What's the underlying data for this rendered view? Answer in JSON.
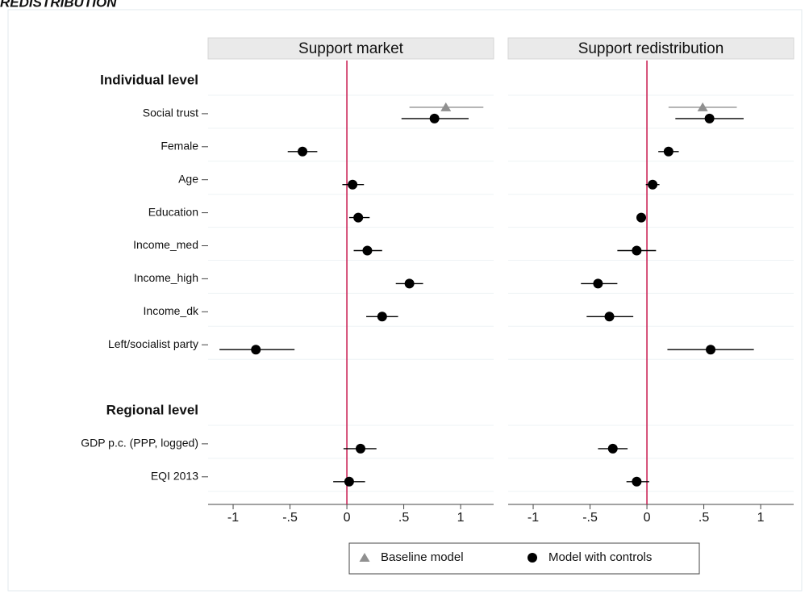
{
  "chart_data": {
    "type": "coefplot",
    "title": "REDISTRIBUTION",
    "xlim": [
      -1.22,
      1.29
    ],
    "xticks": [
      -1,
      {
        "value": -0.5,
        "label": "-.5"
      },
      0,
      {
        "value": 0.5,
        "label": ".5"
      },
      1
    ],
    "reference_line": {
      "value": 0,
      "color": "#c8174d"
    },
    "groups": [
      {
        "label": "Individual level",
        "categories": [
          "Social trust",
          "Female",
          "Age",
          "Education",
          "Income_med",
          "Income_high",
          "Income_dk",
          "Left/socialist party"
        ]
      },
      {
        "label": "Regional level",
        "categories": [
          "GDP p.c. (PPP, logged)",
          "EQI 2013"
        ]
      }
    ],
    "series": [
      {
        "name": "Baseline model",
        "color": "#909090",
        "marker": "triangle"
      },
      {
        "name": "Model with controls",
        "color": "#000000",
        "marker": "circle"
      }
    ],
    "panels": [
      {
        "title": "Support market",
        "series": [
          {
            "values": [
              0.87,
              null,
              null,
              null,
              null,
              null,
              null,
              null,
              null,
              null
            ],
            "lower": [
              0.55,
              null,
              null,
              null,
              null,
              null,
              null,
              null,
              null,
              null
            ],
            "upper": [
              1.2,
              null,
              null,
              null,
              null,
              null,
              null,
              null,
              null,
              null
            ]
          },
          {
            "values": [
              0.77,
              -0.39,
              0.05,
              0.1,
              0.18,
              0.55,
              0.31,
              -0.8,
              0.12,
              0.02
            ],
            "lower": [
              0.48,
              -0.52,
              -0.04,
              0.02,
              0.06,
              0.43,
              0.17,
              -1.12,
              -0.03,
              -0.12
            ],
            "upper": [
              1.07,
              -0.26,
              0.15,
              0.2,
              0.31,
              0.67,
              0.45,
              -0.46,
              0.26,
              0.16
            ]
          }
        ]
      },
      {
        "title": "Support redistribution",
        "series": [
          {
            "values": [
              0.49,
              null,
              null,
              null,
              null,
              null,
              null,
              null,
              null,
              null
            ],
            "lower": [
              0.19,
              null,
              null,
              null,
              null,
              null,
              null,
              null,
              null,
              null
            ],
            "upper": [
              0.79,
              null,
              null,
              null,
              null,
              null,
              null,
              null,
              null,
              null
            ]
          },
          {
            "values": [
              0.55,
              0.19,
              0.05,
              -0.05,
              -0.09,
              -0.43,
              -0.33,
              0.56,
              -0.3,
              -0.09
            ],
            "lower": [
              0.25,
              0.1,
              -0.01,
              -0.09,
              -0.26,
              -0.58,
              -0.53,
              0.18,
              -0.43,
              -0.18
            ],
            "upper": [
              0.85,
              0.28,
              0.11,
              -0.01,
              0.08,
              -0.26,
              -0.12,
              0.94,
              -0.17,
              0.02
            ]
          }
        ]
      }
    ]
  }
}
